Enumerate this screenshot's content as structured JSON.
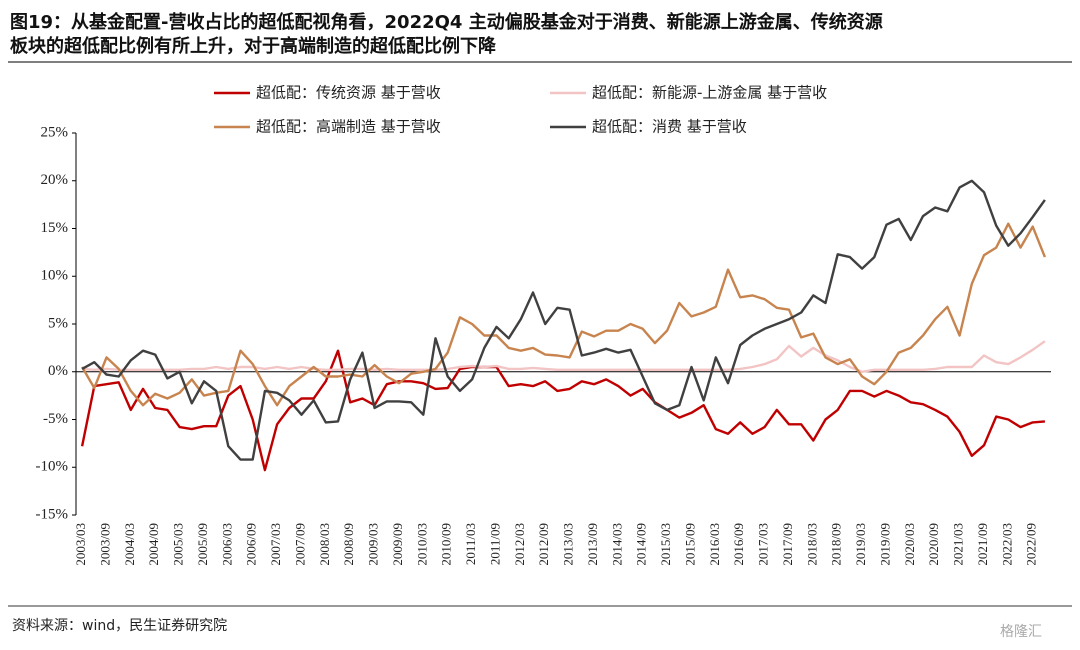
{
  "chart_data": {
    "type": "line",
    "title": "图19：从基金配置-营收占比的超低配视角看，2022Q4 主动偏股基金对于消费、新能源上游金属、传统资源",
    "subtitle": "板块的超低配比例有所上升，对于高端制造的超低配比例下降",
    "source": "资料来源：wind，民生证券研究院",
    "watermark": "格隆汇",
    "categories": [
      "2003/03",
      null,
      "2003/09",
      null,
      "2004/03",
      null,
      "2004/09",
      null,
      "2005/03",
      null,
      "2005/09",
      null,
      "2006/03",
      null,
      "2006/09",
      null,
      "2007/03",
      null,
      "2007/09",
      null,
      "2008/03",
      null,
      "2008/09",
      null,
      "2009/03",
      null,
      "2009/09",
      null,
      "2010/03",
      null,
      "2010/09",
      null,
      "2011/03",
      null,
      "2011/09",
      null,
      "2012/03",
      null,
      "2012/09",
      null,
      "2013/03",
      null,
      "2013/09",
      null,
      "2014/03",
      null,
      "2014/09",
      null,
      "2015/03",
      null,
      "2015/09",
      null,
      "2016/03",
      null,
      "2016/09",
      null,
      "2017/03",
      null,
      "2017/09",
      null,
      "2018/03",
      null,
      "2018/09",
      null,
      "2019/03",
      null,
      "2019/09",
      null,
      "2020/03",
      null,
      "2020/09",
      null,
      "2021/03",
      null,
      "2021/09",
      null,
      "2022/03",
      null,
      "2022/09",
      null
    ],
    "series": [
      {
        "name": "超低配：传统资源 基于营收",
        "color": "#c00000",
        "values": [
          -7.8,
          -1.5,
          -1.3,
          -1.1,
          -4,
          -1.8,
          -3.8,
          -4,
          -5.8,
          -6,
          -5.7,
          -5.7,
          -2.5,
          -1.5,
          -5,
          -10.3,
          -5.5,
          -3.8,
          -2.8,
          -2.8,
          -1,
          2.2,
          -3.2,
          -2.8,
          -3.5,
          -1.3,
          -1,
          -1,
          -1.2,
          -1.8,
          -1.7,
          0.3,
          0.5,
          0.5,
          0.5,
          -1.5,
          -1.3,
          -1.5,
          -1,
          -2,
          -1.8,
          -1,
          -1.3,
          -0.8,
          -1.5,
          -2.5,
          -1.8,
          -3.2,
          -4,
          -4.8,
          -4.3,
          -3.5,
          -6,
          -6.5,
          -5.3,
          -6.5,
          -5.8,
          -4,
          -5.5,
          -5.5,
          -7.2,
          -5,
          -4,
          -2,
          -2,
          -2.6,
          -2,
          -2.5,
          -3.2,
          -3.4,
          -4,
          -4.7,
          -6.3,
          -8.8,
          -7.7,
          -4.7,
          -5,
          -5.8,
          -5.3,
          -5.2
        ]
      },
      {
        "name": "超低配：新能源-上游金属 基于营收",
        "color": "#f2c4c4",
        "values": [
          0.3,
          0.2,
          0.3,
          0.2,
          0.2,
          0.2,
          0.2,
          0.2,
          0.2,
          0.3,
          0.3,
          0.5,
          0.3,
          0.5,
          0.5,
          0.3,
          0.5,
          0.3,
          0.5,
          0.3,
          0.2,
          0.2,
          0.3,
          0.3,
          0.2,
          0.3,
          0.2,
          0.2,
          0.2,
          0.2,
          0.3,
          0.5,
          0.6,
          0.5,
          0.6,
          0.3,
          0.3,
          0.4,
          0.3,
          0.2,
          0.2,
          0.2,
          0.2,
          0.2,
          0.2,
          0.2,
          0.2,
          0.2,
          0.2,
          0.2,
          0.2,
          0.2,
          0.2,
          0.2,
          0.3,
          0.5,
          0.8,
          1.3,
          2.7,
          1.6,
          2.5,
          1.7,
          1.2,
          0.5,
          0,
          0.2,
          0.2,
          0.2,
          0.2,
          0.2,
          0.3,
          0.5,
          0.5,
          0.5,
          1.7,
          1,
          0.8,
          1.5,
          2.3,
          3.2
        ]
      },
      {
        "name": "超低配：高端制造 基于营收",
        "color": "#c8844e",
        "values": [
          0.5,
          -1.7,
          1.5,
          0.3,
          -2,
          -3.5,
          -2.3,
          -2.8,
          -2.2,
          -0.8,
          -2.5,
          -2.2,
          -2,
          2.2,
          0.8,
          -1.5,
          -3.5,
          -1.5,
          -0.5,
          0.5,
          -0.5,
          -0.5,
          -0.3,
          -0.5,
          0.7,
          -0.5,
          -1.2,
          -0.2,
          0,
          0.3,
          2,
          5.7,
          5,
          3.8,
          3.8,
          2.5,
          2.2,
          2.5,
          1.8,
          1.7,
          1.5,
          4.2,
          3.7,
          4.3,
          4.3,
          5,
          4.5,
          3,
          4.3,
          7.2,
          5.8,
          6.2,
          6.8,
          10.7,
          7.8,
          8,
          7.6,
          6.7,
          6.5,
          3.6,
          4,
          1.5,
          0.8,
          1.3,
          -0.5,
          -1.3,
          0,
          2,
          2.5,
          3.8,
          5.5,
          6.8,
          3.8,
          9.2,
          12.2,
          13,
          15.5,
          13,
          15.2,
          12
        ]
      },
      {
        "name": "超低配：消费 基于营收",
        "color": "#404040",
        "values": [
          0.3,
          1,
          -0.3,
          -0.5,
          1.2,
          2.2,
          1.8,
          -0.7,
          0,
          -3.3,
          -1,
          -2,
          -7.8,
          -9.2,
          -9.2,
          -2,
          -2.2,
          -3,
          -4.5,
          -3,
          -5.3,
          -5.2,
          -0.8,
          2,
          -3.8,
          -3.1,
          -3.1,
          -3.2,
          -4.5,
          3.5,
          -0.5,
          -2,
          -0.8,
          2.5,
          4.7,
          3.5,
          5.5,
          8.3,
          5,
          6.7,
          6.5,
          1.7,
          2,
          2.4,
          2,
          2.3,
          -0.5,
          -3.3,
          -4,
          -3.5,
          0.5,
          -3,
          1.5,
          -1.2,
          2.8,
          3.8,
          4.5,
          5,
          5.5,
          6.2,
          8,
          7.2,
          12.3,
          12,
          10.8,
          12,
          15.4,
          16,
          13.8,
          16.3,
          17.2,
          16.8,
          19.3,
          20,
          18.8,
          15.3,
          13.2,
          14.5,
          16.2,
          18
        ]
      }
    ],
    "ylim": [
      -15,
      25
    ],
    "yticks": [
      {
        "value": -15,
        "label": "-15%"
      },
      {
        "value": -10,
        "label": "-10%"
      },
      {
        "value": -5,
        "label": "-5%"
      },
      {
        "value": 0,
        "label": "0%"
      },
      {
        "value": 5,
        "label": "5%"
      },
      {
        "value": 10,
        "label": "10%"
      },
      {
        "value": 15,
        "label": "15%"
      },
      {
        "value": 20,
        "label": "20%"
      },
      {
        "value": 25,
        "label": "25%"
      }
    ]
  }
}
